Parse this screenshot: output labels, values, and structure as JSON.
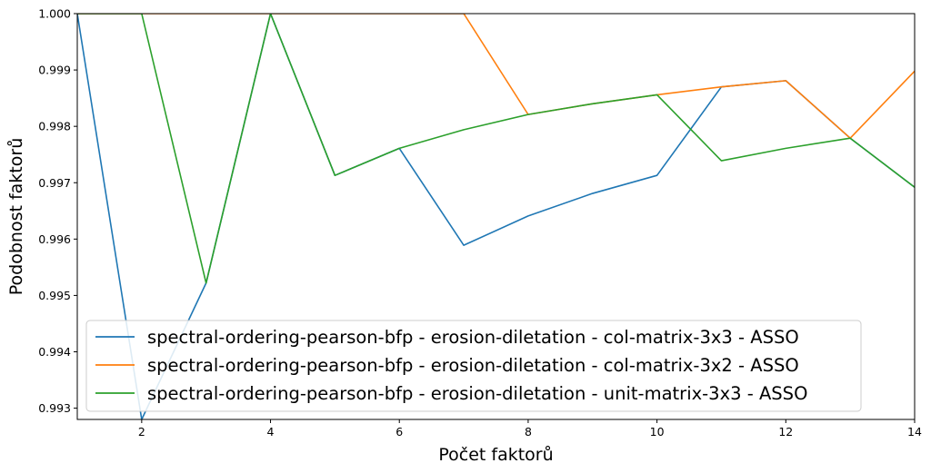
{
  "chart_data": {
    "type": "line",
    "title": "",
    "xlabel": "Počet faktorů",
    "ylabel": "Podobnost faktorů",
    "xlim": [
      1,
      14
    ],
    "ylim": [
      0.9928,
      1.0
    ],
    "xticks": [
      2,
      4,
      6,
      8,
      10,
      12,
      14
    ],
    "xtick_labels": [
      "2",
      "4",
      "6",
      "8",
      "10",
      "12",
      "14"
    ],
    "yticks": [
      0.993,
      0.994,
      0.995,
      0.996,
      0.997,
      0.998,
      0.999,
      1.0
    ],
    "ytick_labels": [
      "0.993",
      "0.994",
      "0.995",
      "0.996",
      "0.997",
      "0.998",
      "0.999",
      "1.000"
    ],
    "grid": false,
    "legend_position": "lower-left",
    "x": [
      1,
      2,
      3,
      4,
      5,
      6,
      7,
      8,
      9,
      10,
      11,
      12,
      13,
      14
    ],
    "series": [
      {
        "name": "spectral-ordering-pearson-bfp - erosion-diletation - col-matrix-3x3 - ASSO",
        "color": "#1f77b4",
        "values": [
          1.0,
          0.9928,
          0.99522,
          1.0,
          0.99713,
          0.99761,
          0.99589,
          0.99641,
          0.99681,
          0.99713,
          0.9987,
          0.99881,
          0.99779,
          0.99692
        ]
      },
      {
        "name": "spectral-ordering-pearson-bfp - erosion-diletation - col-matrix-3x2 - ASSO",
        "color": "#ff7f0e",
        "values": [
          1.0,
          1.0,
          1.0,
          1.0,
          1.0,
          1.0,
          1.0,
          0.99821,
          0.9984,
          0.99856,
          0.9987,
          0.99881,
          0.99779,
          0.99898
        ]
      },
      {
        "name": "spectral-ordering-pearson-bfp - erosion-diletation - unit-matrix-3x3 - ASSO",
        "color": "#2ca02c",
        "values": [
          1.0,
          1.0,
          0.99522,
          1.0,
          0.99713,
          0.99761,
          0.99794,
          0.99821,
          0.9984,
          0.99856,
          0.99739,
          0.99761,
          0.99779,
          0.99692
        ]
      }
    ]
  }
}
